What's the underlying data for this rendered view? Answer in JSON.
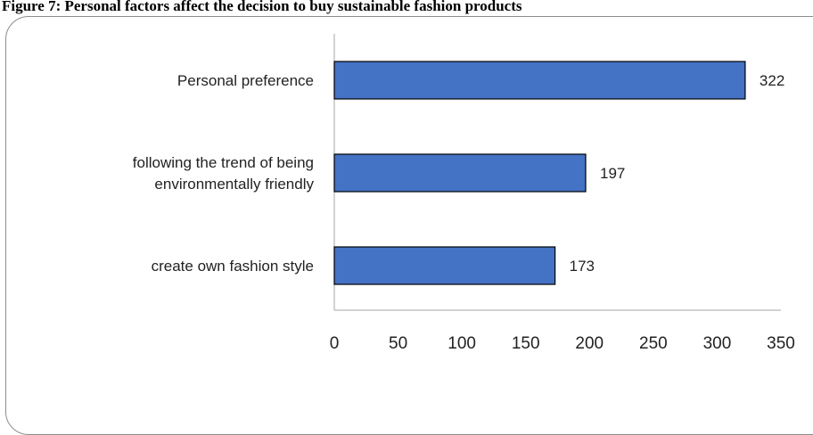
{
  "figure": {
    "title": "Figure 7: Personal factors affect the decision to buy sustainable fashion products"
  },
  "colors": {
    "bar_fill": "#4472C4",
    "bar_stroke": "#000000",
    "axis": "#a6a6a6"
  },
  "chart_data": {
    "type": "bar",
    "orientation": "horizontal",
    "categories": [
      [
        "Personal preference"
      ],
      [
        "following the trend of being",
        "environmentally friendly"
      ],
      [
        "create own fashion style"
      ]
    ],
    "values": [
      322,
      197,
      173
    ],
    "xlim": [
      0,
      350
    ],
    "xticks": [
      0,
      50,
      100,
      150,
      200,
      250,
      300,
      350
    ],
    "data_labels": true,
    "grid": false,
    "legend": "none",
    "title": "",
    "xlabel": "",
    "ylabel": ""
  }
}
